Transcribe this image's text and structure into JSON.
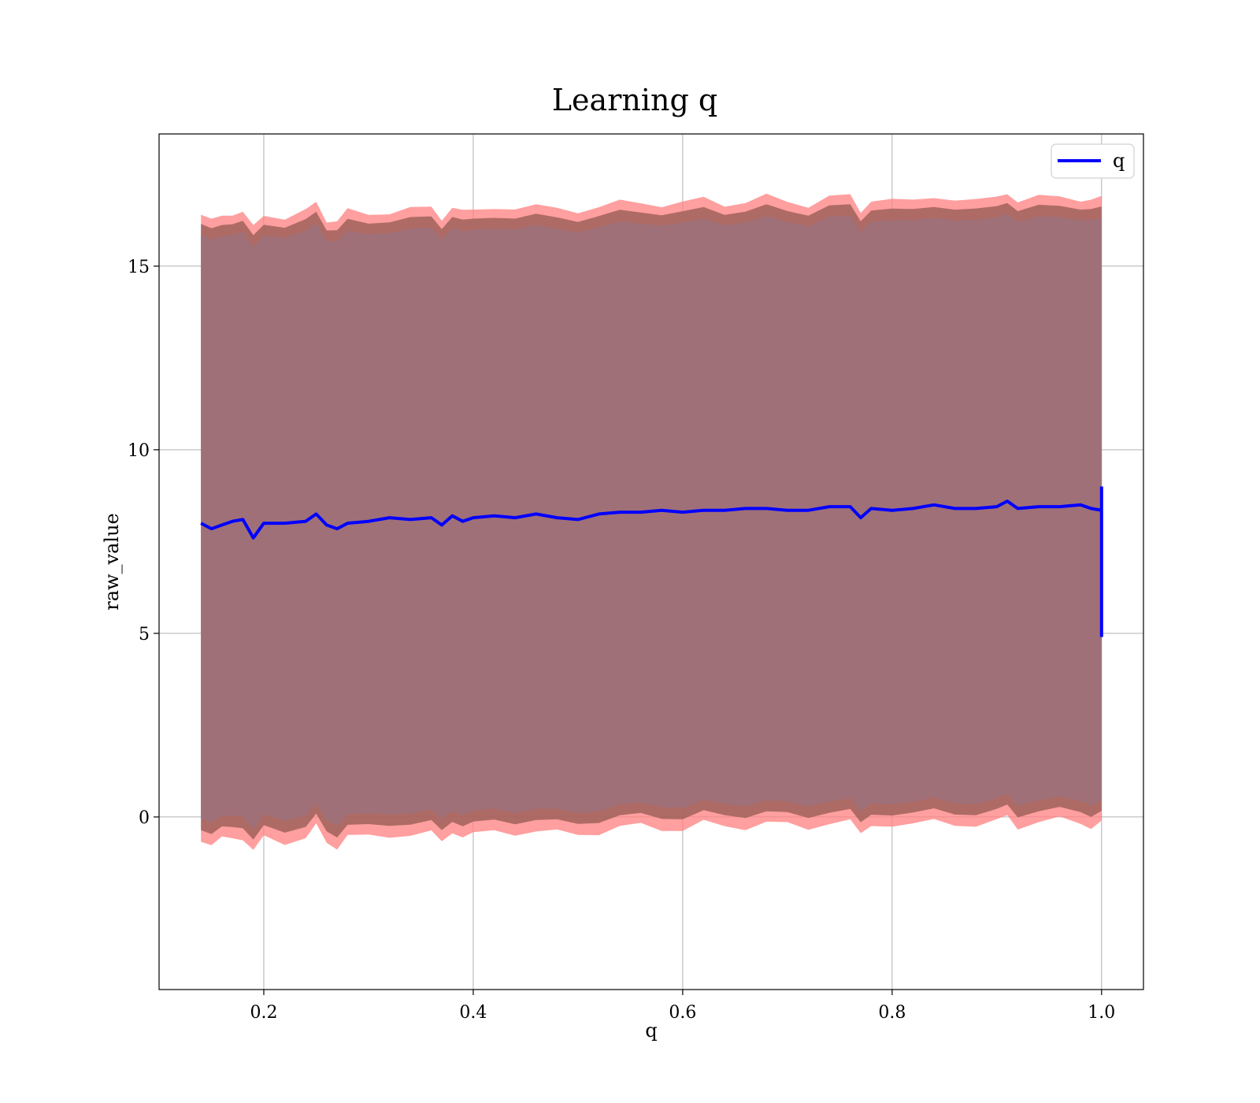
{
  "chart_data": {
    "type": "area",
    "title": "Learning q",
    "xlabel": "q",
    "ylabel": "raw_value",
    "xlim": [
      0.1,
      1.04
    ],
    "ylim": [
      -4.7,
      18.6
    ],
    "x_ticks": [
      0.2,
      0.4,
      0.6,
      0.8,
      1.0
    ],
    "x_tick_labels": [
      "0.2",
      "0.4",
      "0.6",
      "0.8",
      "1.0"
    ],
    "y_ticks": [
      0,
      5,
      10,
      15
    ],
    "y_tick_labels": [
      "0",
      "5",
      "10",
      "15"
    ],
    "grid": true,
    "legend": {
      "placement": "top-right",
      "entries": [
        "q"
      ]
    },
    "colors": {
      "line": "#0000ff",
      "band_outer": "#ff7f7f",
      "band_middle": "#a0625a",
      "band_inner": "#a07078",
      "grid": "#b0b0b0"
    },
    "x_range": [
      0.14,
      1.0
    ],
    "series": [
      {
        "name": "q",
        "x": [
          0.14,
          0.15,
          0.16,
          0.17,
          0.18,
          0.19,
          0.2,
          0.22,
          0.24,
          0.25,
          0.26,
          0.27,
          0.28,
          0.3,
          0.32,
          0.34,
          0.36,
          0.37,
          0.38,
          0.39,
          0.4,
          0.42,
          0.44,
          0.46,
          0.48,
          0.5,
          0.52,
          0.54,
          0.56,
          0.58,
          0.6,
          0.62,
          0.64,
          0.66,
          0.68,
          0.7,
          0.72,
          0.74,
          0.76,
          0.77,
          0.78,
          0.8,
          0.82,
          0.84,
          0.86,
          0.88,
          0.9,
          0.91,
          0.92,
          0.94,
          0.96,
          0.98,
          0.99,
          1.0
        ],
        "y": [
          8.0,
          7.85,
          7.95,
          8.05,
          8.1,
          7.6,
          8.0,
          8.0,
          8.05,
          8.25,
          7.95,
          7.85,
          8.0,
          8.05,
          8.15,
          8.1,
          8.15,
          7.95,
          8.2,
          8.05,
          8.15,
          8.2,
          8.15,
          8.25,
          8.15,
          8.1,
          8.25,
          8.3,
          8.3,
          8.35,
          8.3,
          8.35,
          8.35,
          8.4,
          8.4,
          8.35,
          8.35,
          8.45,
          8.45,
          8.15,
          8.4,
          8.35,
          8.4,
          8.5,
          8.4,
          8.4,
          8.45,
          8.6,
          8.4,
          8.45,
          8.45,
          8.5,
          8.4,
          8.35
        ],
        "final_vertical_segment": [
          4.9,
          9.0
        ]
      }
    ],
    "bands": {
      "outer": {
        "upper_offset": 8.4,
        "lower_offset": -8.6
      },
      "middle": {
        "upper_offset": 8.15,
        "lower_offset": -8.3
      },
      "inner": {
        "upper_offset": 7.85,
        "lower_offset": -8.0
      }
    }
  }
}
